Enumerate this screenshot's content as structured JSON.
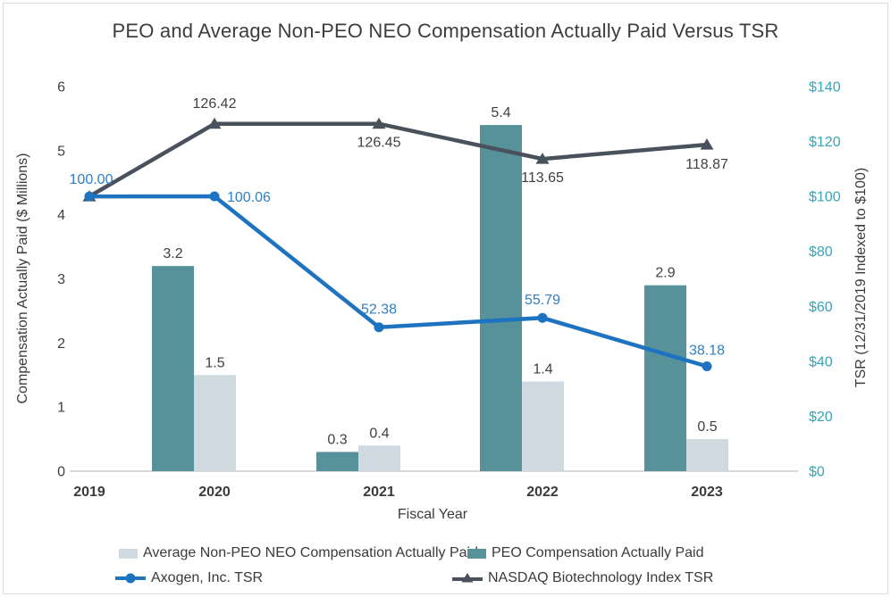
{
  "page_title": "PEO and Average Non-PEO NEO Compensation Actually Paid Versus TSR",
  "chart_data": {
    "type": "combo-bar-line",
    "title": "PEO and Average Non-PEO NEO Compensation Actually Paid Versus TSR",
    "categories": [
      "2019",
      "2020",
      "2021",
      "2022",
      "2023"
    ],
    "xlabel": "Fiscal Year",
    "grid": "off",
    "legend_position": "bottom",
    "plot_background": "#ffffff",
    "axis_line_color": "#d9d9d9",
    "data_label_color": "#404040",
    "category_label_color": "#3b3b3b",
    "axis_title_color": "#3b3b3b",
    "left_axis": {
      "label": "Compensation Actually Paid ($ Millions)",
      "range": [
        0,
        6
      ],
      "tick_values": [
        0,
        1,
        2,
        3,
        4,
        5,
        6
      ],
      "tick_labels": [
        "0",
        "1",
        "2",
        "3",
        "4",
        "5",
        "6"
      ],
      "color": "#404040"
    },
    "right_axis": {
      "label": "TSR (12/31/2019 Indexed to $100)",
      "range": [
        0,
        140
      ],
      "tick_values": [
        0,
        20,
        40,
        60,
        80,
        100,
        120,
        140
      ],
      "tick_labels": [
        "$0",
        "$20",
        "$40",
        "$60",
        "$80",
        "$100",
        "$120",
        "$140"
      ],
      "color": "#36a5b7"
    },
    "bar_series": [
      {
        "name": "PEO Compensation Actually Paid",
        "axis": "left",
        "color": "#57919a",
        "values": [
          null,
          3.2,
          0.3,
          5.4,
          2.9
        ],
        "data_labels": [
          "",
          "3.2",
          "0.3",
          "5.4",
          "2.9"
        ]
      },
      {
        "name": "Average Non-PEO NEO Compensation Actually Paid",
        "axis": "left",
        "color": "#cedadf",
        "values": [
          null,
          1.5,
          0.4,
          1.4,
          0.5
        ],
        "data_labels": [
          "",
          "1.5",
          "0.4",
          "1.4",
          "0.5"
        ]
      }
    ],
    "line_series": [
      {
        "name": "NASDAQ Biotechnology Index TSR",
        "axis": "right",
        "color": "#49525c",
        "marker": "triangle",
        "label_color": "#404040",
        "values": [
          100.0,
          126.42,
          126.45,
          113.65,
          118.87
        ],
        "data_labels": [
          "",
          "126.42",
          "126.45",
          "113.65",
          "118.87"
        ]
      },
      {
        "name": "Axogen, Inc. TSR",
        "axis": "right",
        "color": "#1e73c0",
        "marker": "circle",
        "label_color": "#2e7fc4",
        "values": [
          100.0,
          100.06,
          52.38,
          55.79,
          38.18
        ],
        "data_labels": [
          "100.00",
          "100.06",
          "52.38",
          "55.79",
          "38.18"
        ]
      }
    ]
  },
  "legend": {
    "items": [
      {
        "label": "Average Non-PEO NEO Compensation Actually Paid",
        "swatch": "bar-light"
      },
      {
        "label": "PEO Compensation Actually Paid",
        "swatch": "bar-dark"
      },
      {
        "label": "Axogen, Inc. TSR",
        "swatch": "line-circle-blue"
      },
      {
        "label": "NASDAQ Biotechnology Index TSR",
        "swatch": "line-triangle-grey"
      }
    ]
  }
}
